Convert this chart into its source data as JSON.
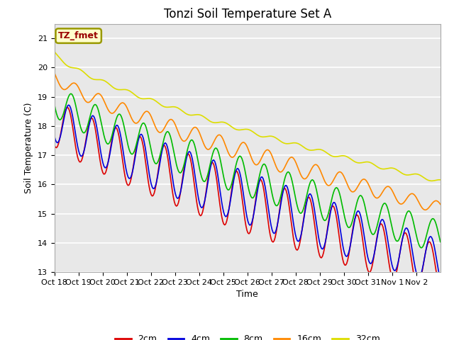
{
  "title": "Tonzi Soil Temperature Set A",
  "xlabel": "Time",
  "ylabel": "Soil Temperature (C)",
  "ylim": [
    13.0,
    21.5
  ],
  "yticks": [
    13.0,
    14.0,
    15.0,
    16.0,
    17.0,
    18.0,
    19.0,
    20.0,
    21.0
  ],
  "xtick_labels": [
    "Oct 18",
    "Oct 19",
    "Oct 20",
    "Oct 21",
    "Oct 22",
    "Oct 23",
    "Oct 24",
    "Oct 25",
    "Oct 26",
    "Oct 27",
    "Oct 28",
    "Oct 29",
    "Oct 30",
    "Oct 31",
    "Nov 1",
    "Nov 2"
  ],
  "legend_label": "TZ_fmet",
  "legend_bg": "#ffffcc",
  "legend_border": "#999900",
  "colors": {
    "2cm": "#dd0000",
    "4cm": "#0000dd",
    "8cm": "#00bb00",
    "16cm": "#ff8800",
    "32cm": "#dddd00"
  },
  "bg_color": "#e8e8e8",
  "grid_color": "#ffffff",
  "title_fontsize": 12,
  "axis_fontsize": 9,
  "tick_fontsize": 8
}
